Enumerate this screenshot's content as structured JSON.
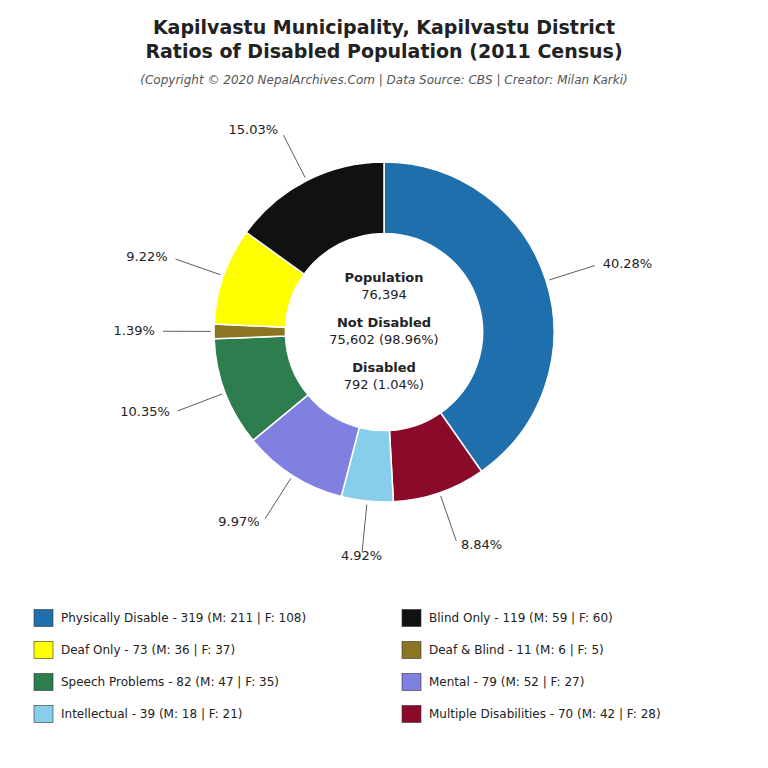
{
  "chart_data": {
    "type": "pie",
    "title": [
      "Kapilvastu Municipality, Kapilvastu District",
      "Ratios of Disabled Population (2011 Census)"
    ],
    "subtitle": "(Copyright © 2020 NepalArchives.Com | Data Source: CBS | Creator: Milan Karki)",
    "center_text": [
      [
        "Population",
        "76,394"
      ],
      [
        "Not Disabled",
        "75,602 (98.96%)"
      ],
      [
        "Disabled",
        "792 (1.04%)"
      ]
    ],
    "values": [
      40.28,
      8.84,
      4.92,
      9.97,
      10.35,
      1.39,
      9.22,
      15.03
    ],
    "value_labels": [
      "40.28%",
      "8.84%",
      "4.92%",
      "9.97%",
      "10.35%",
      "1.39%",
      "9.22%",
      "15.03%"
    ],
    "colors": [
      "#1f6fad",
      "#8b0a2a",
      "#87ceeb",
      "#8080e0",
      "#2e7d4f",
      "#8b7523",
      "#ffff00",
      "#111111"
    ],
    "data_labels": true,
    "legend_entries": [
      {
        "label": "Physically Disable - 319 (M: 211 | F: 108)",
        "color": "#1f6fad"
      },
      {
        "label": "Deaf Only - 73 (M: 36 | F: 37)",
        "color": "#ffff00"
      },
      {
        "label": "Speech Problems - 82 (M: 47 | F: 35)",
        "color": "#2e7d4f"
      },
      {
        "label": "Intellectual - 39 (M: 18 | F: 21)",
        "color": "#87ceeb"
      },
      {
        "label": "Blind Only - 119 (M: 59 | F: 60)",
        "color": "#111111"
      },
      {
        "label": "Deaf & Blind - 11 (M: 6 | F: 5)",
        "color": "#8b7523"
      },
      {
        "label": "Mental - 79 (M: 52 | F: 27)",
        "color": "#8080e0"
      },
      {
        "label": "Multiple Disabilities - 70 (M: 42 | F: 28)",
        "color": "#8b0a2a"
      }
    ]
  }
}
